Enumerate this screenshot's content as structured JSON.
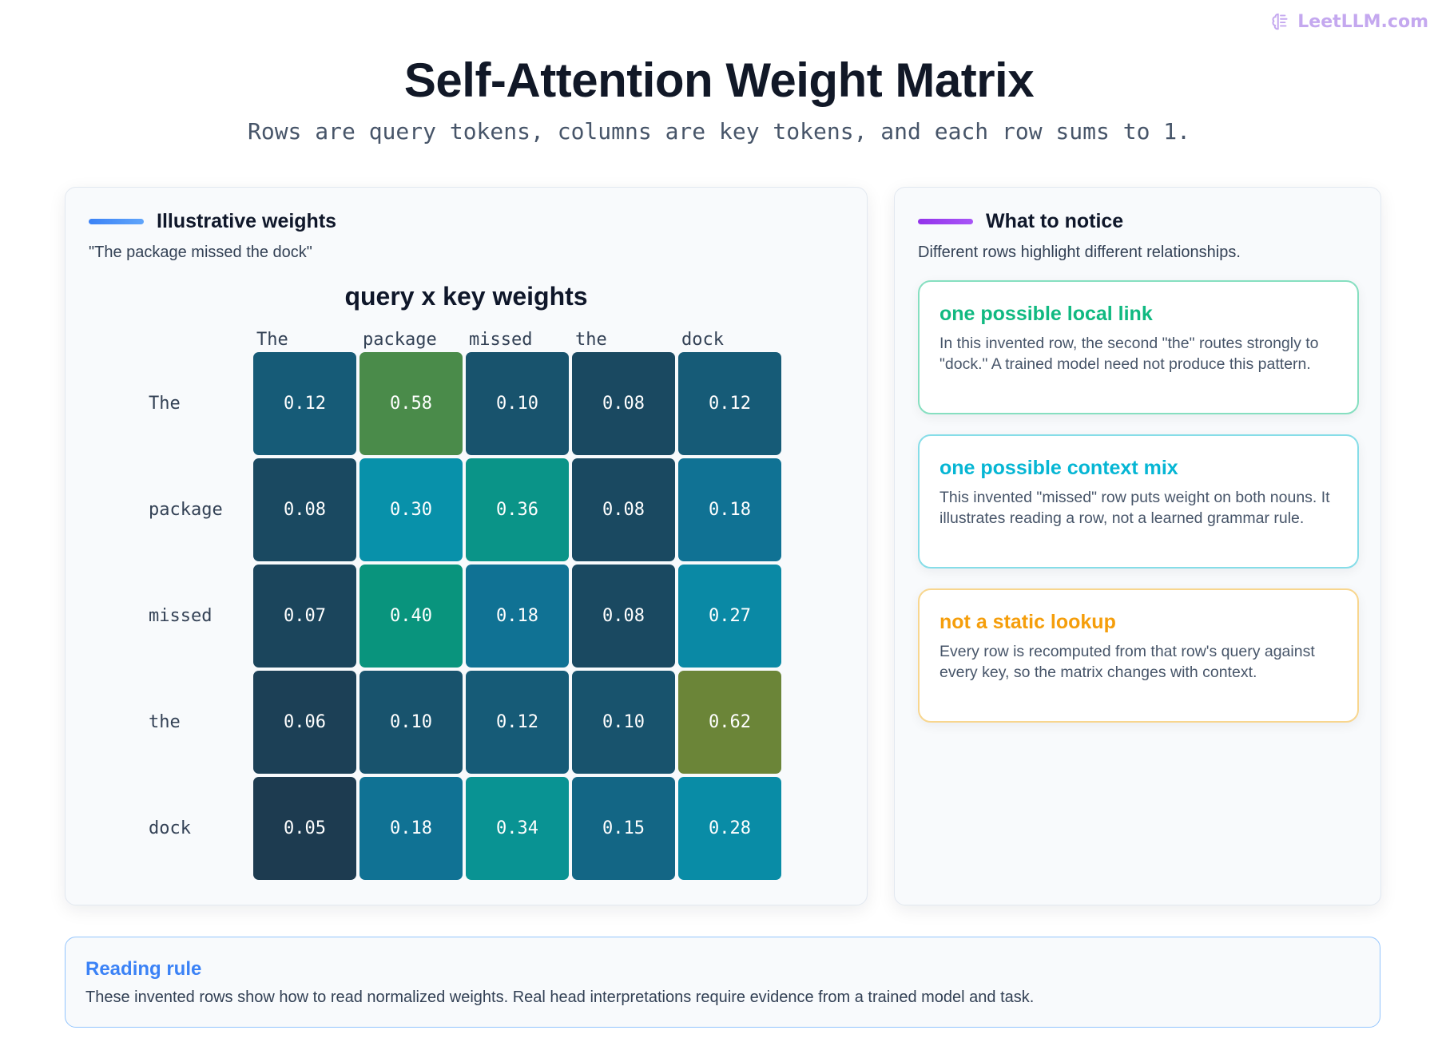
{
  "brand": {
    "label": "LeetLLM.com",
    "icon": "brain-icon",
    "color": "#c4a8ef"
  },
  "header": {
    "title": "Self-Attention Weight Matrix",
    "subtitle": "Rows are query tokens, columns are key tokens, and each row sums to 1."
  },
  "left_panel": {
    "title": "Illustrative weights",
    "subtitle": "\"The package missed the dock\"",
    "accent": "#3b82f6"
  },
  "right_panel": {
    "title": "What to notice",
    "subtitle": "Different rows highlight different relationships.",
    "accent": "#9333ea",
    "cards": [
      {
        "title": "one possible local link",
        "body": "In this invented row, the second \"the\" routes strongly to \"dock.\" A trained model need not produce this pattern.",
        "color": "#10b981",
        "border": "#86dfc0"
      },
      {
        "title": "one possible context mix",
        "body": "This invented \"missed\" row puts weight on both nouns. It illustrates reading a row, not a learned grammar rule.",
        "color": "#06b6d4",
        "border": "#86dde8"
      },
      {
        "title": "not a static lookup",
        "body": "Every row is recomputed from that row's query against every key, so the matrix changes with context.",
        "color": "#f59e0b",
        "border": "#f8d68e"
      }
    ]
  },
  "footer": {
    "title": "Reading rule",
    "text": "These invented rows show how to read normalized weights. Real head interpretations require evidence from a trained model and task."
  },
  "chart_data": {
    "type": "heatmap",
    "title": "query x key weights",
    "x_categories": [
      "The",
      "package",
      "missed",
      "the",
      "dock"
    ],
    "y_categories": [
      "The",
      "package",
      "missed",
      "the",
      "dock"
    ],
    "values": [
      [
        0.12,
        0.58,
        0.1,
        0.08,
        0.12
      ],
      [
        0.08,
        0.3,
        0.36,
        0.08,
        0.18
      ],
      [
        0.07,
        0.4,
        0.18,
        0.08,
        0.27
      ],
      [
        0.06,
        0.1,
        0.12,
        0.1,
        0.62
      ],
      [
        0.05,
        0.18,
        0.34,
        0.15,
        0.28
      ]
    ],
    "value_format": "0.00"
  }
}
